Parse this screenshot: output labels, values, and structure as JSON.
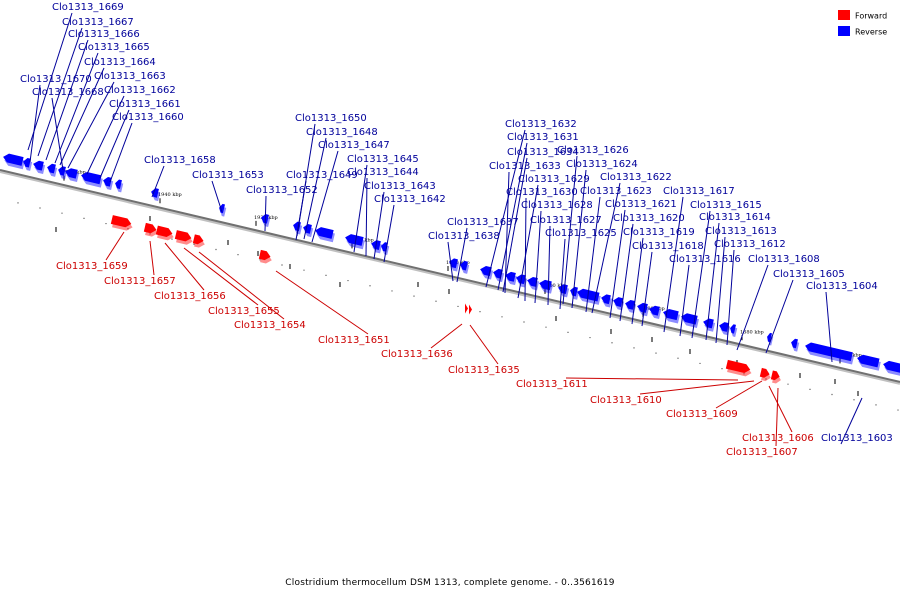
{
  "caption": "Clostridium thermocellum DSM 1313, complete genome. - 0..3561619",
  "legend": [
    {
      "label": "Forward",
      "color": "#ff0000"
    },
    {
      "label": "Reverse",
      "color": "#0000ff"
    }
  ],
  "colors": {
    "forward": "#ff0000",
    "reverse": "#0000ff",
    "forward_text": "#cc0000",
    "reverse_text": "#00009a",
    "line": "#808080"
  },
  "ticks": [
    "1950 kbp",
    "1940 kbp",
    "1930 kbp",
    "1920 kbp",
    "1910 kbp",
    "1900 kbp",
    "1890 kbp",
    "1880 kbp",
    "1870 kbp"
  ],
  "reverse_genes": [
    "Clo1313_1669",
    "Clo1313_1667",
    "Clo1313_1666",
    "Clo1313_1665",
    "Clo1313_1664",
    "Clo1313_1670",
    "Clo1313_1663",
    "Clo1313_1668",
    "Clo1313_1662",
    "Clo1313_1661",
    "Clo1313_1660",
    "Clo1313_1658",
    "Clo1313_1653",
    "Clo1313_1652",
    "Clo1313_1650",
    "Clo1313_1648",
    "Clo1313_1647",
    "Clo1313_1649",
    "Clo1313_1645",
    "Clo1313_1644",
    "Clo1313_1643",
    "Clo1313_1642",
    "Clo1313_1637",
    "Clo1313_1638",
    "Clo1313_1632",
    "Clo1313_1631",
    "Clo1313_1634",
    "Clo1313_1633",
    "Clo1313_1626",
    "Clo1313_1624",
    "Clo1313_1629",
    "Clo1313_1622",
    "Clo1313_1630",
    "Clo1313_1623",
    "Clo1313_1628",
    "Clo1313_1621",
    "Clo1313_1627",
    "Clo1313_1620",
    "Clo1313_1625",
    "Clo1313_1619",
    "Clo1313_1618",
    "Clo1313_1617",
    "Clo1313_1615",
    "Clo1313_1614",
    "Clo1313_1613",
    "Clo1313_1612",
    "Clo1313_1616",
    "Clo1313_1608",
    "Clo1313_1605",
    "Clo1313_1604",
    "Clo1313_1603"
  ],
  "forward_genes": [
    "Clo1313_1659",
    "Clo1313_1657",
    "Clo1313_1656",
    "Clo1313_1655",
    "Clo1313_1654",
    "Clo1313_1651",
    "Clo1313_1636",
    "Clo1313_1635",
    "Clo1313_1611",
    "Clo1313_1610",
    "Clo1313_1609",
    "Clo1313_1606",
    "Clo1313_1607"
  ]
}
